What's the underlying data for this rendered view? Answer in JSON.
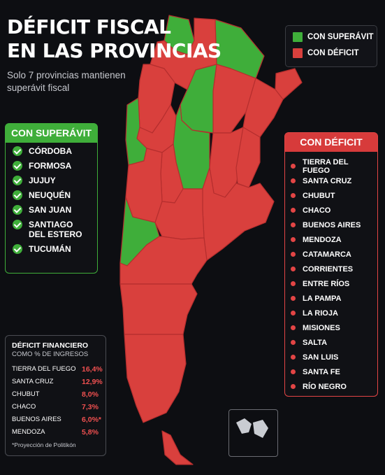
{
  "title": {
    "line1": "DÉFICIT FISCAL",
    "line2": "EN LAS PROVINCIAS"
  },
  "subtitle": "Solo 7 provincias mantienen superávit fiscal",
  "colors": {
    "surplus": "#3fae3a",
    "deficit": "#d9403d",
    "background": "#0d0e12"
  },
  "legend": {
    "surplus_label": "CON SUPERÁVIT",
    "deficit_label": "CON DÉFICIT"
  },
  "surplus_box": {
    "title": "CON SUPERÁVIT",
    "items": [
      "CÓRDOBA",
      "FORMOSA",
      "JUJUY",
      "NEUQUÉN",
      "SAN JUAN",
      "SANTIAGO DEL ESTERO",
      "TUCUMÁN"
    ]
  },
  "deficit_box": {
    "title": "CON DÉFICIT",
    "items": [
      "TIERRA DEL FUEGO",
      "SANTA CRUZ",
      "CHUBUT",
      "CHACO",
      "BUENOS AIRES",
      "MENDOZA",
      "CATAMARCA",
      "CORRIENTES",
      "ENTRE RÍOS",
      "LA PAMPA",
      "LA RIOJA",
      "MISIONES",
      "SALTA",
      "SAN LUIS",
      "SANTA FE",
      "RÍO NEGRO"
    ]
  },
  "financial_box": {
    "heading": "DÉFICIT FINANCIERO",
    "subheading": "COMO % DE INGRESOS",
    "rows": [
      {
        "province": "TIERRA DEL FUEGO",
        "value": "16,4%"
      },
      {
        "province": "SANTA CRUZ",
        "value": "12,9%"
      },
      {
        "province": "CHUBUT",
        "value": "8,0%"
      },
      {
        "province": "CHACO",
        "value": "7,3%"
      },
      {
        "province": "BUENOS AIRES",
        "value": "6,0%*"
      },
      {
        "province": "MENDOZA",
        "value": "5,8%"
      }
    ],
    "note": "*Proyección de Politikón"
  }
}
